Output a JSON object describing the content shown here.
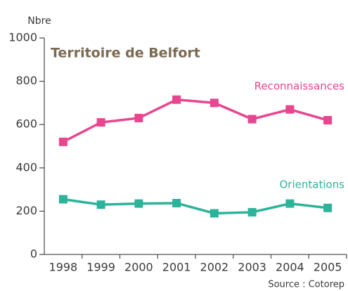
{
  "chart_data": {
    "type": "line",
    "title": "Territoire de Belfort",
    "y_label": "Nbre",
    "source": "Source : Cotorep",
    "categories": [
      "1998",
      "1999",
      "2000",
      "2001",
      "2002",
      "2003",
      "2004",
      "2005"
    ],
    "series": [
      {
        "name": "Reconnaissances",
        "color": "#e8468f",
        "values": [
          520,
          610,
          630,
          715,
          700,
          625,
          670,
          620
        ]
      },
      {
        "name": "Orientations",
        "color": "#2cb39a",
        "values": [
          255,
          230,
          235,
          237,
          190,
          195,
          235,
          215
        ]
      }
    ],
    "ylim": [
      0,
      1000
    ],
    "yticks": [
      0,
      200,
      400,
      600,
      800,
      1000
    ]
  }
}
